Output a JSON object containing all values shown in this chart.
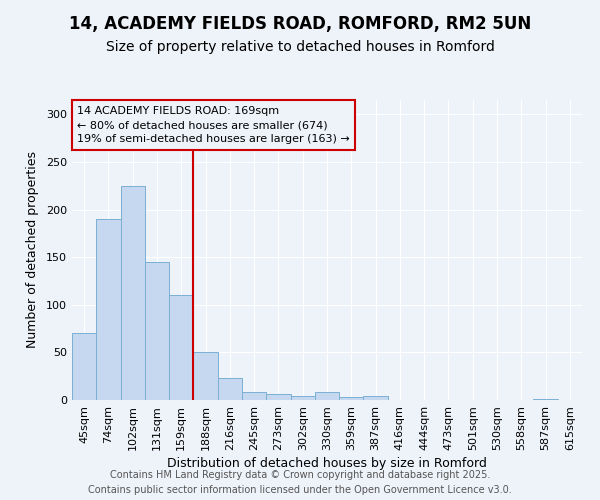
{
  "title_line1": "14, ACADEMY FIELDS ROAD, ROMFORD, RM2 5UN",
  "title_line2": "Size of property relative to detached houses in Romford",
  "xlabel": "Distribution of detached houses by size in Romford",
  "ylabel": "Number of detached properties",
  "categories": [
    "45sqm",
    "74sqm",
    "102sqm",
    "131sqm",
    "159sqm",
    "188sqm",
    "216sqm",
    "245sqm",
    "273sqm",
    "302sqm",
    "330sqm",
    "359sqm",
    "387sqm",
    "416sqm",
    "444sqm",
    "473sqm",
    "501sqm",
    "530sqm",
    "558sqm",
    "587sqm",
    "615sqm"
  ],
  "values": [
    70,
    190,
    225,
    145,
    110,
    50,
    23,
    8,
    6,
    4,
    8,
    3,
    4,
    0,
    0,
    0,
    0,
    0,
    0,
    1,
    0
  ],
  "bar_color": "#c5d8f0",
  "bar_edge_color": "#7aafd4",
  "vline_color": "#cc0000",
  "vline_x": 4.5,
  "annotation_box_text": "14 ACADEMY FIELDS ROAD: 169sqm\n← 80% of detached houses are smaller (674)\n19% of semi-detached houses are larger (163) →",
  "annotation_box_color": "#cc0000",
  "ylim": [
    0,
    315
  ],
  "yticks": [
    0,
    50,
    100,
    150,
    200,
    250,
    300
  ],
  "background_color": "#eef2f9",
  "grid_color": "#ffffff",
  "footer_line1": "Contains HM Land Registry data © Crown copyright and database right 2025.",
  "footer_line2": "Contains public sector information licensed under the Open Government Licence v3.0.",
  "title1_fontsize": 12,
  "title2_fontsize": 10,
  "label_fontsize": 9,
  "tick_fontsize": 8,
  "annotation_fontsize": 8,
  "footer_fontsize": 7
}
